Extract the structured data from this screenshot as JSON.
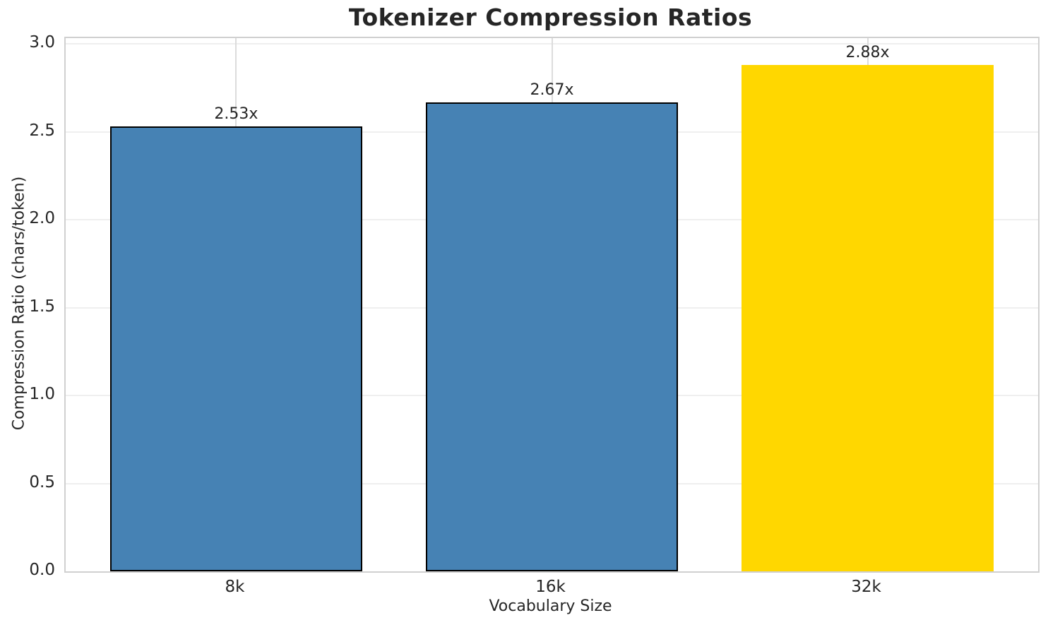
{
  "chart_data": {
    "type": "bar",
    "title": "Tokenizer Compression Ratios",
    "xlabel": "Vocabulary Size",
    "ylabel": "Compression Ratio (chars/token)",
    "categories": [
      "8k",
      "16k",
      "32k"
    ],
    "values": [
      2.53,
      2.67,
      2.88
    ],
    "value_labels": [
      "2.53x",
      "2.67x",
      "2.88x"
    ],
    "bar_colors": [
      "#4682b4",
      "#4682b4",
      "#ffd700"
    ],
    "bar_edge_colors": [
      "#000000",
      "#000000",
      "none"
    ],
    "yticks": [
      0.0,
      0.5,
      1.0,
      1.5,
      2.0,
      2.5,
      3.0
    ],
    "ytick_labels": [
      "0.0",
      "0.5",
      "1.0",
      "1.5",
      "2.0",
      "2.5",
      "3.0"
    ],
    "ylim": [
      0,
      3.034
    ],
    "xlim": [
      -0.54,
      2.54
    ],
    "bar_width": 0.8,
    "grid": true,
    "legend": "none",
    "colors": {
      "spine": "#d0d0d0",
      "grid_horizontal": "#efefef",
      "grid_vertical": "#dcdcdc",
      "text": "#262626"
    }
  }
}
